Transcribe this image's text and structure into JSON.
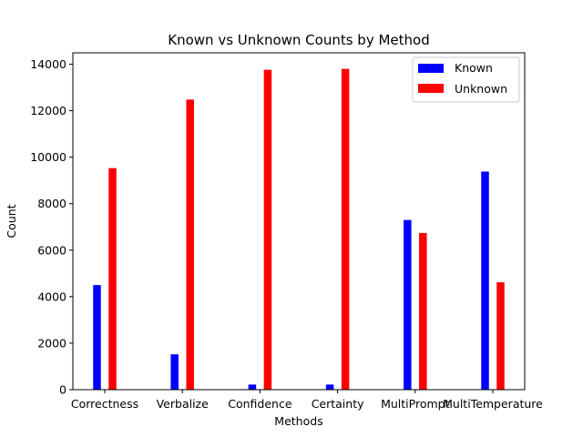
{
  "chart_data": {
    "type": "bar",
    "title": "Known vs Unknown Counts by Method",
    "xlabel": "Methods",
    "ylabel": "Count",
    "categories": [
      "Correctness",
      "Verbalize",
      "Confidence",
      "Certainty",
      "MultiPrompt",
      "MultiTemperature"
    ],
    "series": [
      {
        "name": "Known",
        "color": "#0000ff",
        "values": [
          4500,
          1520,
          220,
          220,
          7300,
          9380
        ]
      },
      {
        "name": "Unknown",
        "color": "#ff0000",
        "values": [
          9530,
          12480,
          13760,
          13800,
          6740,
          4620
        ]
      }
    ],
    "ylim": [
      0,
      14490
    ],
    "yticks": [
      0,
      2000,
      4000,
      6000,
      8000,
      10000,
      12000,
      14000
    ],
    "grid": false,
    "legend": "top-right"
  }
}
